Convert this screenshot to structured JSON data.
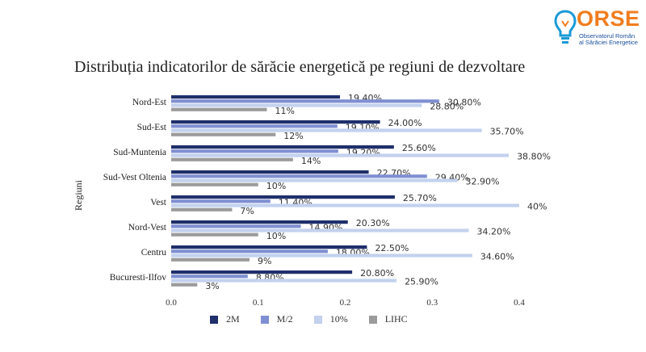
{
  "logo": {
    "name": "ORSE",
    "subtitle_lines": [
      "Observatorul Român",
      "al Sărăciei Energetice"
    ],
    "colors": {
      "accent": "#f07d1e",
      "secondary": "#1b4f9c"
    }
  },
  "chart_data": {
    "type": "bar",
    "orientation": "horizontal",
    "title": "Distribuția indicatorilor de sărăcie energetică pe regiuni de dezvoltare",
    "ylabel": "Regiuni",
    "xlabel": "",
    "xlim": [
      0,
      0.4
    ],
    "x_ticks": [
      "0.0",
      "0.1",
      "0.2",
      "0.3",
      "0.4"
    ],
    "grid": false,
    "legend_position": "bottom",
    "categories": [
      "Nord-Est",
      "Sud-Est",
      "Sud-Muntenia",
      "Sud-Vest Oltenia",
      "Vest",
      "Nord-Vest",
      "Centru",
      "Bucuresti-Ilfov"
    ],
    "series": [
      {
        "name": "2M",
        "color": "#1f2f6b",
        "values": [
          0.194,
          0.24,
          0.256,
          0.227,
          0.257,
          0.203,
          0.225,
          0.208
        ],
        "labels": [
          "19.40%",
          "24.00%",
          "25.60%",
          "22.70%",
          "25.70%",
          "20.30%",
          "22.50%",
          "20.80%"
        ]
      },
      {
        "name": "M/2",
        "color": "#7f8fd1",
        "values": [
          0.308,
          0.191,
          0.192,
          0.294,
          0.114,
          0.149,
          0.18,
          0.088
        ],
        "labels": [
          "30.80%",
          "19.10%",
          "19.20%",
          "29.40%",
          "11.40%",
          "14.90%",
          "18.00%",
          "8.80%"
        ]
      },
      {
        "name": "10%",
        "color": "#c3d1ee",
        "values": [
          0.288,
          0.357,
          0.388,
          0.329,
          0.4,
          0.342,
          0.346,
          0.259
        ],
        "labels": [
          "28.80%",
          "35.70%",
          "38.80%",
          "32.90%",
          "40%",
          "34.20%",
          "34.60%",
          "25.90%"
        ]
      },
      {
        "name": "LIHC",
        "color": "#9b9b9b",
        "values": [
          0.11,
          0.12,
          0.14,
          0.1,
          0.07,
          0.1,
          0.09,
          0.03
        ],
        "labels": [
          "11%",
          "12%",
          "14%",
          "10%",
          "7%",
          "10%",
          "9%",
          "3%"
        ]
      }
    ]
  }
}
